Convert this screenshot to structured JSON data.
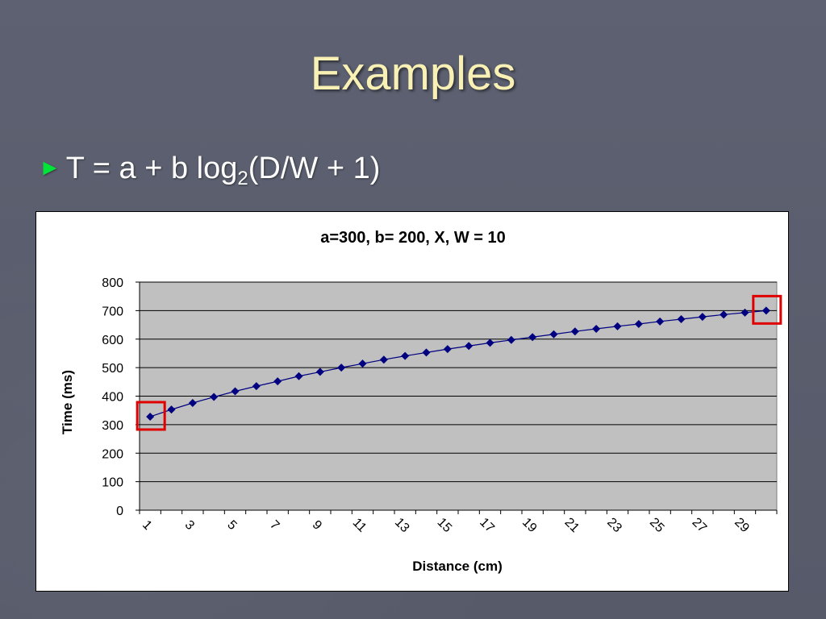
{
  "slide": {
    "title": "Examples",
    "bullet": {
      "prefix": "T = a + b log",
      "subscript": "2",
      "suffix": "(D/W + 1)"
    }
  },
  "chart_data": {
    "type": "line",
    "title": "a=300, b= 200, X, W = 10",
    "xlabel": "Distance (cm)",
    "ylabel": "Time (ms)",
    "ylim": [
      0,
      800
    ],
    "yticks": [
      0,
      100,
      200,
      300,
      400,
      500,
      600,
      700,
      800
    ],
    "x": [
      1,
      2,
      3,
      4,
      5,
      6,
      7,
      8,
      9,
      10,
      11,
      12,
      13,
      14,
      15,
      16,
      17,
      18,
      19,
      20,
      21,
      22,
      23,
      24,
      25,
      26,
      27,
      28,
      29,
      30
    ],
    "xtick_labels": [
      "1",
      "3",
      "5",
      "7",
      "9",
      "11",
      "13",
      "15",
      "17",
      "19",
      "21",
      "23",
      "25",
      "27",
      "29"
    ],
    "series": [
      {
        "values": [
          328,
          353,
          376,
          397,
          417,
          435,
          452,
          470,
          485,
          500,
          514,
          528,
          541,
          553,
          565,
          576,
          587,
          597,
          607,
          617,
          627,
          636,
          645,
          653,
          662,
          670,
          678,
          686,
          693,
          700
        ],
        "color": "#000080"
      }
    ],
    "highlight_boxes_at_x": [
      1,
      30
    ],
    "highlight_color": "#e00000",
    "plot_background": "#c0c0c0",
    "grid": true
  }
}
